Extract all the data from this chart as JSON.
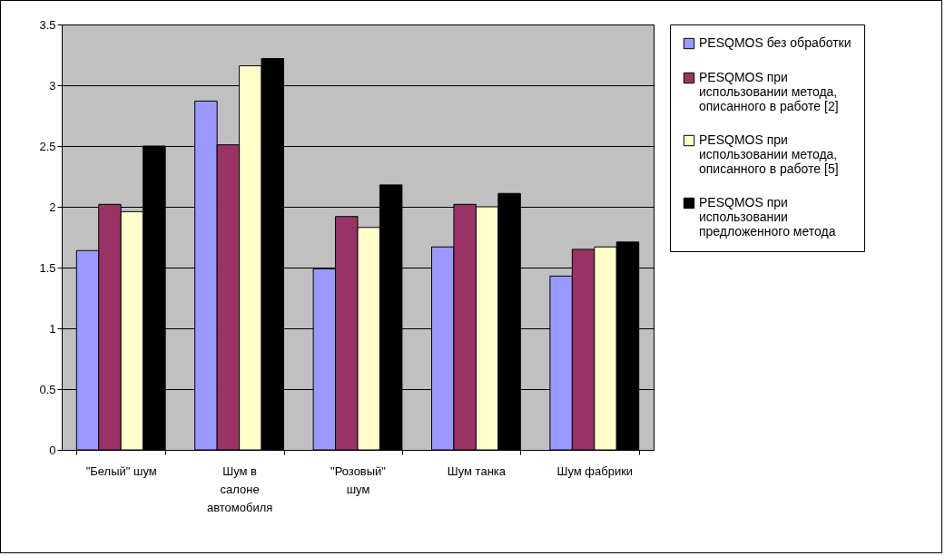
{
  "chart_data": {
    "type": "bar",
    "categories": [
      "\"Белый\" шум",
      "Шум в салоне автомобиля",
      "\"Розовый\" шум",
      "Шум танка",
      "Шум фабрики"
    ],
    "series": [
      {
        "name": "PESQMOS без обработки",
        "color": "#9999ff",
        "values": [
          1.64,
          2.87,
          1.49,
          1.67,
          1.43
        ]
      },
      {
        "name": "PESQMOS при использовании метода, описанного в работе [2]",
        "color": "#993366",
        "values": [
          2.02,
          2.51,
          1.92,
          2.02,
          1.65
        ]
      },
      {
        "name": "PESQMOS при использовании метода, описанного в работе [5]",
        "color": "#ffffcc",
        "values": [
          1.96,
          3.16,
          1.83,
          2.0,
          1.67
        ]
      },
      {
        "name": "PESQMOS при использовании предложенного метода",
        "color": "#000000",
        "values": [
          2.5,
          3.22,
          2.18,
          2.11,
          1.71
        ]
      }
    ],
    "ylim": [
      0,
      3.5
    ],
    "yticks": [
      0,
      0.5,
      1,
      1.5,
      2,
      2.5,
      3,
      3.5
    ],
    "grid": "y",
    "legend": "right"
  }
}
